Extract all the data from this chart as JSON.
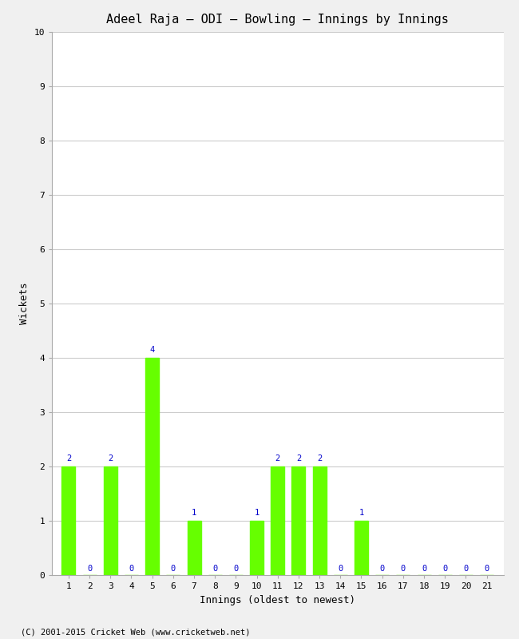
{
  "title": "Adeel Raja – ODI – Bowling – Innings by Innings",
  "xlabel": "Innings (oldest to newest)",
  "ylabel": "Wickets",
  "innings": [
    1,
    2,
    3,
    4,
    5,
    6,
    7,
    8,
    9,
    10,
    11,
    12,
    13,
    14,
    15,
    16,
    17,
    18,
    19,
    20,
    21
  ],
  "wickets": [
    2,
    0,
    2,
    0,
    4,
    0,
    1,
    0,
    0,
    1,
    2,
    2,
    2,
    0,
    1,
    0,
    0,
    0,
    0,
    0,
    0
  ],
  "bar_color": "#66ff00",
  "bar_edge_color": "#66ff00",
  "label_color": "#0000cc",
  "background_color": "#f0f0f0",
  "plot_bg_color": "#ffffff",
  "grid_color": "#cccccc",
  "ylim": [
    0,
    10
  ],
  "yticks": [
    0,
    1,
    2,
    3,
    4,
    5,
    6,
    7,
    8,
    9,
    10
  ],
  "label_fontsize": 7.5,
  "title_fontsize": 11,
  "axis_label_fontsize": 9,
  "tick_fontsize": 8,
  "footer": "(C) 2001-2015 Cricket Web (www.cricketweb.net)",
  "footer_fontsize": 7.5
}
